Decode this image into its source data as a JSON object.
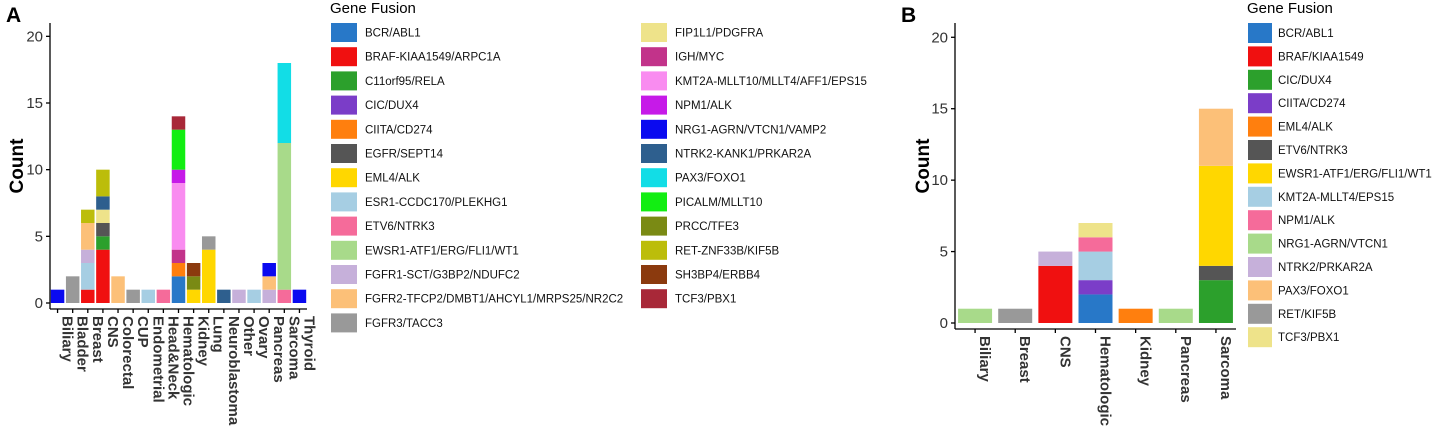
{
  "chart_data": [
    {
      "type": "bar",
      "stacked": true,
      "panel_label": "A",
      "ylabel": "Count",
      "ylim": [
        0,
        21
      ],
      "yticks": [
        0,
        5,
        10,
        15,
        20
      ],
      "legend_title": "Gene Fusion",
      "legend_columns": 2,
      "categories": [
        "Biliary",
        "Bladder",
        "Breast",
        "CNS",
        "Colorectal",
        "CUP",
        "Endometrial",
        "Head&Neck",
        "Hematologic",
        "Kidney",
        "Lung",
        "Neuroblastoma",
        "Other",
        "Ovary",
        "Pancreas",
        "Sarcoma",
        "Thyroid"
      ],
      "series": [
        {
          "name": "BCR/ABL1",
          "color": "#2878C8",
          "values": [
            0,
            0,
            0,
            0,
            0,
            0,
            0,
            0,
            2,
            0,
            0,
            0,
            0,
            0,
            0,
            0,
            0
          ]
        },
        {
          "name": "BRAF-KIAA1549/ARPC1A",
          "color": "#F01010",
          "values": [
            0,
            0,
            1,
            4,
            0,
            0,
            0,
            0,
            0,
            0,
            0,
            0,
            0,
            0,
            0,
            0,
            0
          ]
        },
        {
          "name": "C11orf95/RELA",
          "color": "#2CA02C",
          "values": [
            0,
            0,
            0,
            1,
            0,
            0,
            0,
            0,
            0,
            0,
            0,
            0,
            0,
            0,
            0,
            0,
            0
          ]
        },
        {
          "name": "CIC/DUX4",
          "color": "#7B3DC8",
          "values": [
            0,
            0,
            0,
            0,
            0,
            0,
            0,
            0,
            0,
            0,
            0,
            0,
            0,
            0,
            0,
            0,
            0
          ]
        },
        {
          "name": "CIITA/CD274",
          "color": "#FF7F0E",
          "values": [
            0,
            0,
            0,
            0,
            0,
            0,
            0,
            0,
            1,
            0,
            0,
            0,
            0,
            0,
            0,
            0,
            0
          ]
        },
        {
          "name": "EGFR/SEPT14",
          "color": "#555555",
          "values": [
            0,
            0,
            0,
            1,
            0,
            0,
            0,
            0,
            0,
            0,
            0,
            0,
            0,
            0,
            0,
            0,
            0
          ]
        },
        {
          "name": "EML4/ALK",
          "color": "#FFD700",
          "values": [
            0,
            0,
            0,
            0,
            0,
            0,
            0,
            0,
            0,
            1,
            4,
            0,
            0,
            0,
            0,
            0,
            0
          ]
        },
        {
          "name": "ESR1-CCDC170/PLEKHG1",
          "color": "#A6CEE3",
          "values": [
            0,
            0,
            2,
            0,
            0,
            0,
            1,
            0,
            0,
            0,
            0,
            0,
            0,
            1,
            0,
            0,
            0
          ]
        },
        {
          "name": "ETV6/NTRK3",
          "color": "#F56B9A",
          "values": [
            0,
            0,
            0,
            0,
            0,
            0,
            0,
            1,
            0,
            0,
            0,
            0,
            0,
            0,
            0,
            1,
            0
          ]
        },
        {
          "name": "EWSR1-ATF1/ERG/FLI1/WT1",
          "color": "#A8DA8A",
          "values": [
            0,
            0,
            0,
            0,
            0,
            0,
            0,
            0,
            0,
            0,
            0,
            0,
            0,
            0,
            0,
            11,
            0
          ]
        },
        {
          "name": "FGFR1-SCT/G3BP2/NDUFC2",
          "color": "#C6B0DA",
          "values": [
            0,
            0,
            1,
            0,
            0,
            0,
            0,
            0,
            0,
            0,
            0,
            0,
            1,
            0,
            1,
            0,
            0
          ]
        },
        {
          "name": "FGFR2-TFCP2/DMBT1/AHCYL1/MRPS25/NR2C2",
          "color": "#FCC078",
          "values": [
            0,
            0,
            2,
            0,
            2,
            0,
            0,
            0,
            0,
            0,
            0,
            0,
            0,
            0,
            1,
            0,
            0
          ]
        },
        {
          "name": "FGFR3/TACC3",
          "color": "#999999",
          "values": [
            0,
            2,
            0,
            0,
            0,
            1,
            0,
            0,
            0,
            0,
            1,
            0,
            0,
            0,
            0,
            0,
            0
          ]
        },
        {
          "name": "FIP1L1/PDGFRA",
          "color": "#EEE38A",
          "values": [
            0,
            0,
            0,
            1,
            0,
            0,
            0,
            0,
            0,
            0,
            0,
            0,
            0,
            0,
            0,
            0,
            0
          ]
        },
        {
          "name": "IGH/MYC",
          "color": "#C2338A",
          "values": [
            0,
            0,
            0,
            0,
            0,
            0,
            0,
            0,
            1,
            0,
            0,
            0,
            0,
            0,
            0,
            0,
            0
          ]
        },
        {
          "name": "KMT2A-MLLT10/MLLT4/AFF1/EPS15",
          "color": "#F98CF0",
          "values": [
            0,
            0,
            0,
            0,
            0,
            0,
            0,
            0,
            5,
            0,
            0,
            0,
            0,
            0,
            0,
            0,
            0
          ]
        },
        {
          "name": "NPM1/ALK",
          "color": "#C61AE8",
          "values": [
            0,
            0,
            0,
            0,
            0,
            0,
            0,
            0,
            1,
            0,
            0,
            0,
            0,
            0,
            0,
            0,
            0
          ]
        },
        {
          "name": "NRG1-AGRN/VTCN1/VAMP2",
          "color": "#0A0AF0",
          "values": [
            1,
            0,
            0,
            0,
            0,
            0,
            0,
            0,
            0,
            0,
            0,
            0,
            0,
            0,
            1,
            0,
            1
          ]
        },
        {
          "name": "NTRK2-KANK1/PRKAR2A",
          "color": "#2E5F8E",
          "values": [
            0,
            0,
            0,
            1,
            0,
            0,
            0,
            0,
            0,
            0,
            0,
            1,
            0,
            0,
            0,
            0,
            0
          ]
        },
        {
          "name": "PAX3/FOXO1",
          "color": "#12DDE6",
          "values": [
            0,
            0,
            0,
            0,
            0,
            0,
            0,
            0,
            0,
            0,
            0,
            0,
            0,
            0,
            0,
            6,
            0
          ]
        },
        {
          "name": "PICALM/MLLT10",
          "color": "#12EE12",
          "values": [
            0,
            0,
            0,
            0,
            0,
            0,
            0,
            0,
            3,
            0,
            0,
            0,
            0,
            0,
            0,
            0,
            0
          ]
        },
        {
          "name": "PRCC/TFE3",
          "color": "#7A8A14",
          "values": [
            0,
            0,
            0,
            0,
            0,
            0,
            0,
            0,
            0,
            1,
            0,
            0,
            0,
            0,
            0,
            0,
            0
          ]
        },
        {
          "name": "RET-ZNF33B/KIF5B",
          "color": "#BCBD0A",
          "values": [
            0,
            0,
            1,
            2,
            0,
            0,
            0,
            0,
            0,
            0,
            0,
            0,
            0,
            0,
            0,
            0,
            0
          ]
        },
        {
          "name": "SH3BP4/ERBB4",
          "color": "#8B3A0E",
          "values": [
            0,
            0,
            0,
            0,
            0,
            0,
            0,
            0,
            0,
            1,
            0,
            0,
            0,
            0,
            0,
            0,
            0
          ]
        },
        {
          "name": "TCF3/PBX1",
          "color": "#A82838",
          "values": [
            0,
            0,
            0,
            0,
            0,
            0,
            0,
            0,
            1,
            0,
            0,
            0,
            0,
            0,
            0,
            0,
            0
          ]
        }
      ]
    },
    {
      "type": "bar",
      "stacked": true,
      "panel_label": "B",
      "ylabel": "Count",
      "ylim": [
        0,
        21
      ],
      "yticks": [
        0,
        5,
        10,
        15,
        20
      ],
      "legend_title": "Gene Fusion",
      "legend_columns": 1,
      "categories": [
        "Biliary",
        "Breast",
        "CNS",
        "Hematologic",
        "Kidney",
        "Pancreas",
        "Sarcoma"
      ],
      "series": [
        {
          "name": "BCR/ABL1",
          "color": "#2878C8",
          "values": [
            0,
            0,
            0,
            2,
            0,
            0,
            0
          ]
        },
        {
          "name": "BRAF/KIAA1549",
          "color": "#F01010",
          "values": [
            0,
            0,
            4,
            0,
            0,
            0,
            0
          ]
        },
        {
          "name": "CIC/DUX4",
          "color": "#2CA02C",
          "values": [
            0,
            0,
            0,
            0,
            0,
            0,
            3
          ]
        },
        {
          "name": "CIITA/CD274",
          "color": "#7B3DC8",
          "values": [
            0,
            0,
            0,
            1,
            0,
            0,
            0
          ]
        },
        {
          "name": "EML4/ALK",
          "color": "#FF7F0E",
          "values": [
            0,
            0,
            0,
            0,
            1,
            0,
            0
          ]
        },
        {
          "name": "ETV6/NTRK3",
          "color": "#555555",
          "values": [
            0,
            0,
            0,
            0,
            0,
            0,
            1
          ]
        },
        {
          "name": "EWSR1-ATF1/ERG/FLI1/WT1",
          "color": "#FFD700",
          "values": [
            0,
            0,
            0,
            0,
            0,
            0,
            7
          ]
        },
        {
          "name": "KMT2A-MLLT4/EPS15",
          "color": "#A6CEE3",
          "values": [
            0,
            0,
            0,
            2,
            0,
            0,
            0
          ]
        },
        {
          "name": "NPM1/ALK",
          "color": "#F56B9A",
          "values": [
            0,
            0,
            0,
            1,
            0,
            0,
            0
          ]
        },
        {
          "name": "NRG1-AGRN/VTCN1",
          "color": "#A8DA8A",
          "values": [
            1,
            0,
            0,
            0,
            0,
            1,
            0
          ]
        },
        {
          "name": "NTRK2/PRKAR2A",
          "color": "#C6B0DA",
          "values": [
            0,
            0,
            1,
            0,
            0,
            0,
            0
          ]
        },
        {
          "name": "PAX3/FOXO1",
          "color": "#FCC078",
          "values": [
            0,
            0,
            0,
            0,
            0,
            0,
            4
          ]
        },
        {
          "name": "RET/KIF5B",
          "color": "#999999",
          "values": [
            0,
            1,
            0,
            0,
            0,
            0,
            0
          ]
        },
        {
          "name": "TCF3/PBX1",
          "color": "#EEE38A",
          "values": [
            0,
            0,
            0,
            1,
            0,
            0,
            0
          ]
        }
      ]
    }
  ]
}
